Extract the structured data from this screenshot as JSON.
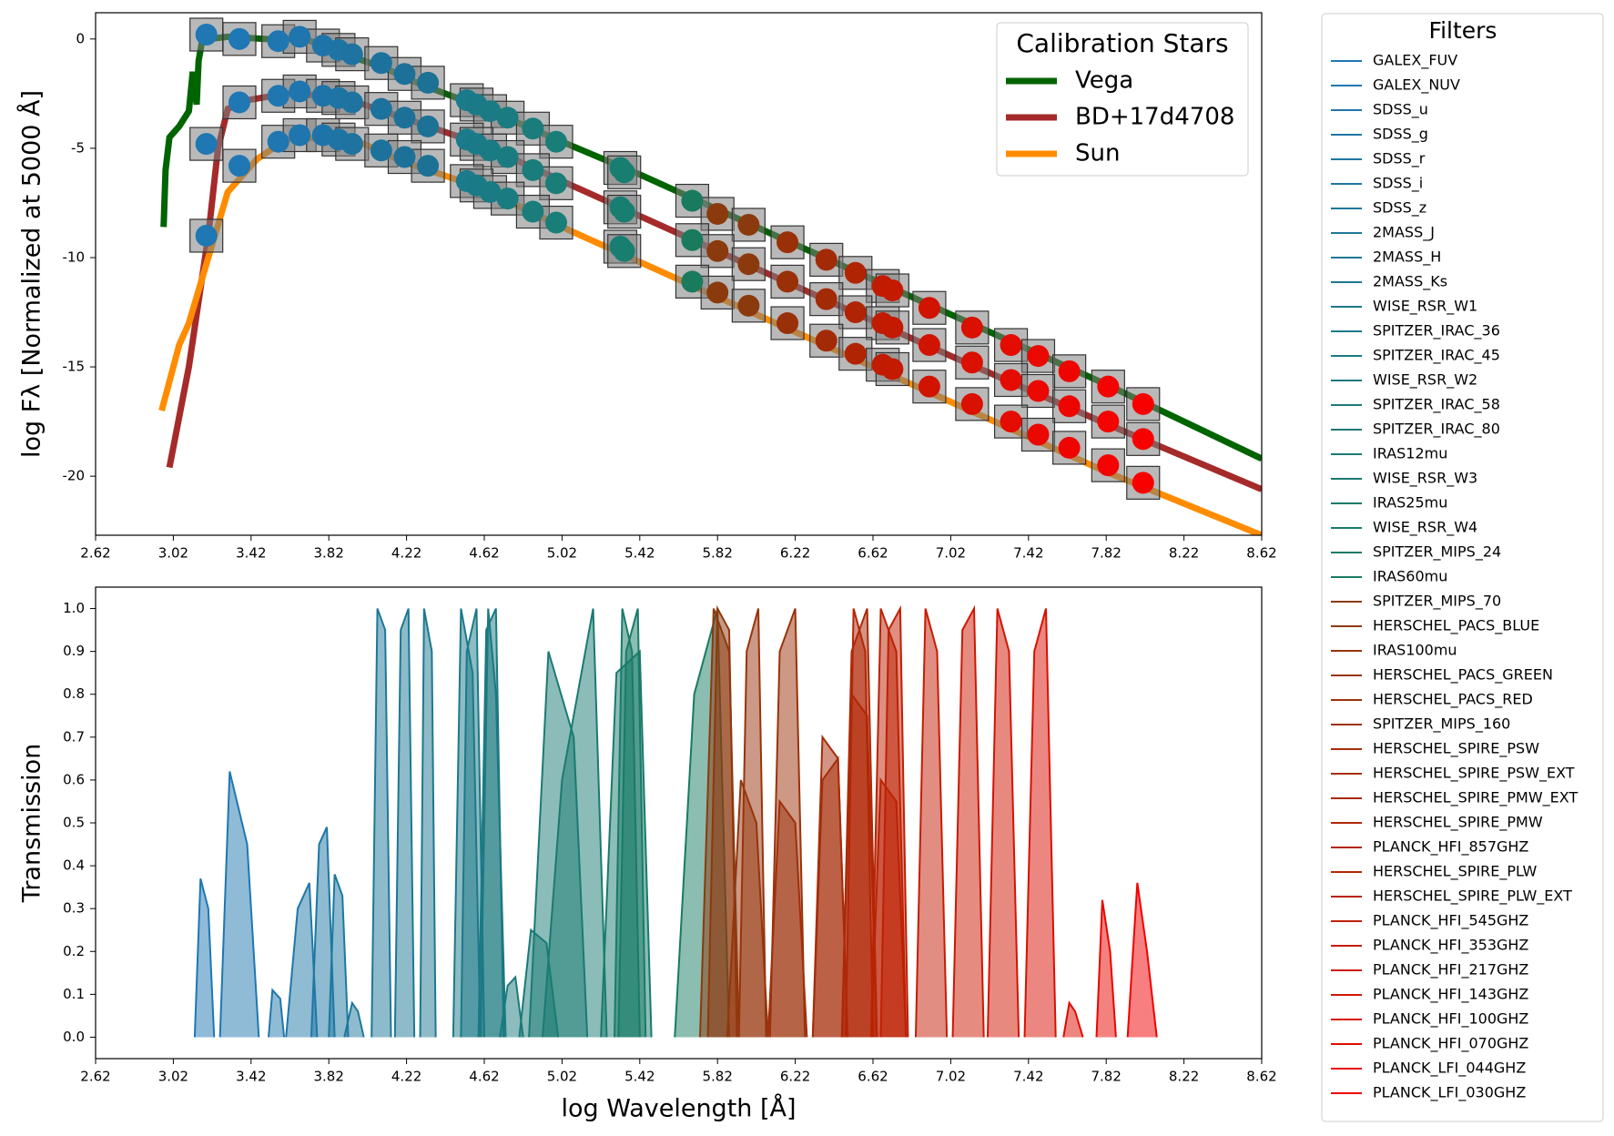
{
  "chart_data": [
    {
      "type": "line",
      "ylabel": "log Fλ [Normalized at 5000 Å]",
      "legend_title": "Calibration Stars",
      "legend": "upper right",
      "xlim": [
        2.62,
        8.62
      ],
      "xticks": [
        2.62,
        3.02,
        3.42,
        3.82,
        4.22,
        4.62,
        5.02,
        5.42,
        5.82,
        6.22,
        6.62,
        7.02,
        7.42,
        7.82,
        8.22,
        8.62
      ],
      "ylim": [
        -22.7,
        1.2
      ],
      "yticks": [
        0,
        -5,
        -10,
        -15,
        -20
      ],
      "points": {
        "x": [
          3.19,
          3.36,
          3.56,
          3.67,
          3.79,
          3.87,
          3.94,
          4.09,
          4.21,
          4.33,
          4.53,
          4.58,
          4.65,
          4.74,
          4.87,
          4.99,
          5.32,
          5.34,
          5.69,
          5.82,
          5.98,
          6.18,
          6.38,
          6.53,
          6.67,
          6.72,
          6.91,
          7.13,
          7.33,
          7.47,
          7.63,
          7.83,
          8.01
        ],
        "colors": [
          "#1f77b4",
          "#1f77b4",
          "#1f76b1",
          "#1f75ad",
          "#1e74a9",
          "#1e74a5",
          "#1e73a1",
          "#1d729d",
          "#1d7199",
          "#1c7195",
          "#1b7a8c",
          "#1b7a88",
          "#1a7b84",
          "#1a7c80",
          "#1a7d7c",
          "#197d78",
          "#187e72",
          "#187e70",
          "#1a7a5e",
          "#8b3a0e",
          "#8b3a0e",
          "#993008",
          "#a32a06",
          "#b02404",
          "#c01c02",
          "#c41a02",
          "#d01401",
          "#da1000",
          "#e40b00",
          "#ea0800",
          "#ef0500",
          "#f40300",
          "#f80000"
        ]
      },
      "series": [
        {
          "name": "Vega",
          "color": "#006400",
          "x": [
            2.97,
            2.98,
            3.0,
            3.05,
            3.1,
            3.12,
            3.14,
            3.15,
            3.17,
            3.2,
            3.3,
            3.5,
            3.7,
            3.9,
            4.1,
            4.3,
            4.6,
            5.02,
            5.42,
            6.22,
            7.02,
            7.82,
            8.62
          ],
          "values": [
            -8.6,
            -6,
            -4.5,
            -4,
            -3.3,
            -1.5,
            -3,
            -1,
            0,
            0,
            0.1,
            0,
            0,
            -0.7,
            -1.3,
            -2.1,
            -3.1,
            -4.7,
            -6.2,
            -9.4,
            -12.6,
            -15.8,
            -19.2
          ],
          "point_values": [
            0.2,
            0,
            -0.1,
            0.1,
            -0.3,
            -0.5,
            -0.7,
            -1.1,
            -1.6,
            -2.0,
            -2.8,
            -3.0,
            -3.3,
            -3.6,
            -4.1,
            -4.7,
            -5.9,
            -6.1,
            -7.4,
            -8.0,
            -8.5,
            -9.3,
            -10.1,
            -10.7,
            -11.3,
            -11.5,
            -12.3,
            -13.2,
            -14.0,
            -14.5,
            -15.2,
            -15.9,
            -16.7
          ]
        },
        {
          "name": "BD+17d4708",
          "color": "#a52a2a",
          "x": [
            3.0,
            3.1,
            3.2,
            3.25,
            3.3,
            3.4,
            3.6,
            3.8,
            4.0,
            4.2,
            4.6,
            5.02,
            5.42,
            6.22,
            7.02,
            7.82,
            8.62
          ],
          "values": [
            -19.6,
            -15,
            -9,
            -5,
            -3.2,
            -2.8,
            -2.5,
            -2.6,
            -3.0,
            -3.6,
            -4.8,
            -6.5,
            -8.1,
            -11.3,
            -14.5,
            -17.6,
            -20.6
          ],
          "point_values": [
            -4.8,
            -2.9,
            -2.6,
            -2.4,
            -2.6,
            -2.7,
            -2.9,
            -3.2,
            -3.6,
            -4.0,
            -4.6,
            -4.8,
            -5.1,
            -5.4,
            -6.0,
            -6.6,
            -7.7,
            -7.9,
            -9.2,
            -9.7,
            -10.3,
            -11.1,
            -11.9,
            -12.5,
            -13.0,
            -13.2,
            -14.0,
            -14.8,
            -15.6,
            -16.1,
            -16.8,
            -17.5,
            -18.3
          ]
        },
        {
          "name": "Sun",
          "color": "#ff8c00",
          "x": [
            2.96,
            3.05,
            3.1,
            3.15,
            3.2,
            3.3,
            3.45,
            3.6,
            3.8,
            4.0,
            4.2,
            4.6,
            5.02,
            5.42,
            6.22,
            7.02,
            7.82,
            8.62
          ],
          "values": [
            -17,
            -14,
            -13,
            -11.5,
            -10,
            -7,
            -5.5,
            -4.6,
            -4.5,
            -4.8,
            -5.6,
            -6.8,
            -8.6,
            -10.2,
            -13.4,
            -16.6,
            -19.8,
            -22.7
          ],
          "point_values": [
            -9.0,
            -5.8,
            -4.7,
            -4.4,
            -4.4,
            -4.6,
            -4.8,
            -5.1,
            -5.4,
            -5.8,
            -6.5,
            -6.7,
            -7.0,
            -7.3,
            -7.9,
            -8.4,
            -9.5,
            -9.7,
            -11.1,
            -11.6,
            -12.2,
            -13.0,
            -13.8,
            -14.4,
            -14.9,
            -15.1,
            -15.9,
            -16.7,
            -17.5,
            -18.1,
            -18.7,
            -19.5,
            -20.3
          ]
        }
      ]
    },
    {
      "type": "area",
      "xlabel": "log Wavelength [Å]",
      "ylabel": "Transmission",
      "legend_title": "Filters",
      "xlim": [
        2.62,
        8.62
      ],
      "xticks": [
        2.62,
        3.02,
        3.42,
        3.82,
        4.22,
        4.62,
        5.02,
        5.42,
        5.82,
        6.22,
        6.62,
        7.02,
        7.42,
        7.82,
        8.22,
        8.62
      ],
      "ylim": [
        -0.05,
        1.05
      ],
      "yticks": [
        {
          "value": 0,
          "label": "0.0"
        },
        0.1,
        0.2,
        0.3,
        0.4,
        0.5,
        0.6,
        0.7,
        0.8,
        0.9,
        {
          "value": 1,
          "label": "1.0"
        }
      ],
      "series": [
        {
          "name": "GALEX_FUV",
          "color": "#1f77b4",
          "x": [
            3.13,
            3.16,
            3.2,
            3.23
          ],
          "values": [
            0,
            0.37,
            0.3,
            0
          ]
        },
        {
          "name": "GALEX_NUV",
          "color": "#1f77b0",
          "x": [
            3.26,
            3.31,
            3.4,
            3.46
          ],
          "values": [
            0,
            0.62,
            0.45,
            0
          ]
        },
        {
          "name": "SDSS_u",
          "color": "#1f77ac",
          "x": [
            3.51,
            3.53,
            3.57,
            3.59
          ],
          "values": [
            0,
            0.11,
            0.09,
            0
          ]
        },
        {
          "name": "SDSS_g",
          "color": "#1f77a8",
          "x": [
            3.6,
            3.66,
            3.72,
            3.76
          ],
          "values": [
            0,
            0.3,
            0.36,
            0
          ]
        },
        {
          "name": "SDSS_r",
          "color": "#1e77a4",
          "x": [
            3.73,
            3.77,
            3.81,
            3.85
          ],
          "values": [
            0,
            0.45,
            0.49,
            0
          ]
        },
        {
          "name": "SDSS_i",
          "color": "#1e78a0",
          "x": [
            3.82,
            3.85,
            3.89,
            3.92
          ],
          "values": [
            0,
            0.38,
            0.33,
            0
          ]
        },
        {
          "name": "SDSS_z",
          "color": "#1e789c",
          "x": [
            3.9,
            3.94,
            3.97,
            4.0
          ],
          "values": [
            0,
            0.08,
            0.06,
            0
          ]
        },
        {
          "name": "2MASS_J",
          "color": "#1d7898",
          "x": [
            4.04,
            4.07,
            4.11,
            4.14
          ],
          "values": [
            0,
            1.0,
            0.95,
            0
          ]
        },
        {
          "name": "2MASS_H",
          "color": "#1d7894",
          "x": [
            4.16,
            4.19,
            4.23,
            4.26
          ],
          "values": [
            0,
            0.95,
            1.0,
            0
          ]
        },
        {
          "name": "2MASS_Ks",
          "color": "#1d7890",
          "x": [
            4.29,
            4.31,
            4.35,
            4.37
          ],
          "values": [
            0,
            1.0,
            0.9,
            0
          ]
        },
        {
          "name": "WISE_RSR_W1",
          "color": "#1c798c",
          "x": [
            4.46,
            4.5,
            4.56,
            4.6
          ],
          "values": [
            0,
            1.0,
            0.85,
            0
          ]
        },
        {
          "name": "SPITZER_IRAC_36",
          "color": "#1c7988",
          "x": [
            4.5,
            4.53,
            4.58,
            4.62
          ],
          "values": [
            0,
            0.9,
            1.0,
            0
          ]
        },
        {
          "name": "SPITZER_IRAC_45",
          "color": "#1b7984",
          "x": [
            4.59,
            4.63,
            4.68,
            4.72
          ],
          "values": [
            0,
            0.95,
            1.0,
            0
          ]
        },
        {
          "name": "WISE_RSR_W2",
          "color": "#1b7980",
          "x": [
            4.6,
            4.64,
            4.68,
            4.73
          ],
          "values": [
            0,
            1.0,
            0.8,
            0
          ]
        },
        {
          "name": "SPITZER_IRAC_58",
          "color": "#1b7a7c",
          "x": [
            4.7,
            4.74,
            4.78,
            4.82
          ],
          "values": [
            0,
            0.12,
            0.14,
            0
          ]
        },
        {
          "name": "SPITZER_IRAC_80",
          "color": "#1a7a78",
          "x": [
            4.8,
            4.86,
            4.94,
            5.0
          ],
          "values": [
            0,
            0.25,
            0.22,
            0
          ]
        },
        {
          "name": "IRAS12mu",
          "color": "#1a7a74",
          "x": [
            4.85,
            4.95,
            5.08,
            5.15
          ],
          "values": [
            0,
            0.9,
            0.7,
            0
          ]
        },
        {
          "name": "WISE_RSR_W3",
          "color": "#1a7a71",
          "x": [
            4.92,
            5.02,
            5.18,
            5.25
          ],
          "values": [
            0,
            0.6,
            1.0,
            0
          ]
        },
        {
          "name": "IRAS25mu",
          "color": "#197b6d",
          "x": [
            5.22,
            5.3,
            5.42,
            5.48
          ],
          "values": [
            0,
            0.85,
            0.9,
            0
          ]
        },
        {
          "name": "WISE_RSR_W4",
          "color": "#197b69",
          "x": [
            5.29,
            5.33,
            5.38,
            5.42
          ],
          "values": [
            0,
            1.0,
            0.9,
            0
          ]
        },
        {
          "name": "SPITZER_MIPS_24",
          "color": "#197b66",
          "x": [
            5.31,
            5.35,
            5.41,
            5.45
          ],
          "values": [
            0,
            0.9,
            1.0,
            0
          ]
        },
        {
          "name": "IRAS60mu",
          "color": "#187b62",
          "x": [
            5.6,
            5.7,
            5.82,
            5.88
          ],
          "values": [
            0,
            0.8,
            1.0,
            0
          ]
        },
        {
          "name": "SPITZER_MIPS_70",
          "color": "#8b3a0e",
          "x": [
            5.73,
            5.8,
            5.88,
            5.93
          ],
          "values": [
            0,
            1.0,
            0.9,
            0
          ]
        },
        {
          "name": "HERSCHEL_PACS_BLUE",
          "color": "#8f380d",
          "x": [
            5.77,
            5.82,
            5.88,
            5.92
          ],
          "values": [
            0,
            1.0,
            0.95,
            0
          ]
        },
        {
          "name": "IRAS100mu",
          "color": "#93360c",
          "x": [
            5.87,
            5.94,
            6.02,
            6.08
          ],
          "values": [
            0,
            0.6,
            0.5,
            0
          ]
        },
        {
          "name": "HERSCHEL_PACS_GREEN",
          "color": "#97340b",
          "x": [
            5.93,
            5.97,
            6.03,
            6.07
          ],
          "values": [
            0,
            0.9,
            1.0,
            0
          ]
        },
        {
          "name": "HERSCHEL_PACS_RED",
          "color": "#9b320a",
          "x": [
            6.09,
            6.14,
            6.22,
            6.27
          ],
          "values": [
            0,
            0.9,
            1.0,
            0
          ]
        },
        {
          "name": "SPITZER_MIPS_160",
          "color": "#9f300a",
          "x": [
            6.08,
            6.14,
            6.22,
            6.28
          ],
          "values": [
            0,
            0.55,
            0.5,
            0
          ]
        },
        {
          "name": "HERSCHEL_SPIRE_PSW",
          "color": "#a32e09",
          "x": [
            6.31,
            6.36,
            6.44,
            6.49
          ],
          "values": [
            0,
            0.6,
            0.65,
            0
          ]
        },
        {
          "name": "HERSCHEL_SPIRE_PSW_EXT",
          "color": "#a72c08",
          "x": [
            6.31,
            6.36,
            6.44,
            6.49
          ],
          "values": [
            0,
            0.7,
            0.65,
            0
          ]
        },
        {
          "name": "HERSCHEL_SPIRE_PMW_EXT",
          "color": "#ab2a07",
          "x": [
            6.46,
            6.51,
            6.59,
            6.64
          ],
          "values": [
            0,
            0.9,
            1.0,
            0
          ]
        },
        {
          "name": "HERSCHEL_SPIRE_PMW",
          "color": "#af2806",
          "x": [
            6.46,
            6.51,
            6.59,
            6.64
          ],
          "values": [
            0,
            0.8,
            0.75,
            0
          ]
        },
        {
          "name": "PLANCK_HFI_857GHZ",
          "color": "#b32606",
          "x": [
            6.48,
            6.52,
            6.58,
            6.62
          ],
          "values": [
            0,
            1.0,
            0.9,
            0
          ]
        },
        {
          "name": "HERSCHEL_SPIRE_PLW",
          "color": "#b72405",
          "x": [
            6.61,
            6.66,
            6.74,
            6.79
          ],
          "values": [
            0,
            0.6,
            0.55,
            0
          ]
        },
        {
          "name": "HERSCHEL_SPIRE_PLW_EXT",
          "color": "#bb2204",
          "x": [
            6.61,
            6.66,
            6.74,
            6.79
          ],
          "values": [
            0,
            1.0,
            0.9,
            0
          ]
        },
        {
          "name": "PLANCK_HFI_545GHZ",
          "color": "#c02003",
          "x": [
            6.66,
            6.7,
            6.76,
            6.8
          ],
          "values": [
            0,
            0.95,
            1.0,
            0
          ]
        },
        {
          "name": "PLANCK_HFI_353GHZ",
          "color": "#c61c03",
          "x": [
            6.84,
            6.89,
            6.95,
            7.0
          ],
          "values": [
            0,
            1.0,
            0.9,
            0
          ]
        },
        {
          "name": "PLANCK_HFI_217GHZ",
          "color": "#cc1802",
          "x": [
            7.03,
            7.08,
            7.14,
            7.19
          ],
          "values": [
            0,
            0.95,
            1.0,
            0
          ]
        },
        {
          "name": "PLANCK_HFI_143GHZ",
          "color": "#d21402",
          "x": [
            7.21,
            7.26,
            7.32,
            7.37
          ],
          "values": [
            0,
            1.0,
            0.9,
            0
          ]
        },
        {
          "name": "PLANCK_HFI_100GHZ",
          "color": "#d81001",
          "x": [
            7.4,
            7.45,
            7.51,
            7.56
          ],
          "values": [
            0,
            0.9,
            1.0,
            0
          ]
        },
        {
          "name": "PLANCK_HFI_070GHZ",
          "color": "#de0c01",
          "x": [
            7.6,
            7.63,
            7.66,
            7.7
          ],
          "values": [
            0,
            0.08,
            0.06,
            0
          ]
        },
        {
          "name": "PLANCK_LFI_044GHZ",
          "color": "#e80600",
          "x": [
            7.77,
            7.8,
            7.84,
            7.87
          ],
          "values": [
            0,
            0.32,
            0.2,
            0
          ]
        },
        {
          "name": "PLANCK_LFI_030GHZ",
          "color": "#f20000",
          "x": [
            7.93,
            7.98,
            8.03,
            8.08
          ],
          "values": [
            0,
            0.36,
            0.2,
            0
          ]
        }
      ]
    }
  ]
}
